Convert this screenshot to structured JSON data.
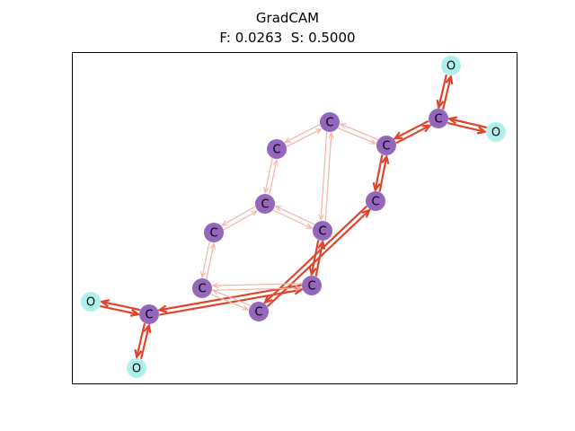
{
  "figure": {
    "title": "GradCAM",
    "fidelity_label": "F: 0.0263",
    "sparsity_label": "S: 0.5000"
  },
  "colors": {
    "carbon_node": "#9467bd",
    "oxygen_node": "#aff0ec",
    "edge_strong": "#e0442b",
    "edge_weak": "#f3b6aa",
    "frame": "#000000"
  },
  "graph": {
    "nodes": [
      {
        "id": 0,
        "label": "C",
        "element": "carbon"
      },
      {
        "id": 1,
        "label": "C",
        "element": "carbon"
      },
      {
        "id": 2,
        "label": "C",
        "element": "carbon"
      },
      {
        "id": 3,
        "label": "C",
        "element": "carbon"
      },
      {
        "id": 4,
        "label": "C",
        "element": "carbon"
      },
      {
        "id": 5,
        "label": "C",
        "element": "carbon"
      },
      {
        "id": 6,
        "label": "C",
        "element": "carbon"
      },
      {
        "id": 7,
        "label": "C",
        "element": "carbon"
      },
      {
        "id": 8,
        "label": "C",
        "element": "carbon"
      },
      {
        "id": 9,
        "label": "C",
        "element": "carbon"
      },
      {
        "id": 10,
        "label": "C",
        "element": "carbon"
      },
      {
        "id": 11,
        "label": "O",
        "element": "oxygen"
      },
      {
        "id": 12,
        "label": "O",
        "element": "oxygen"
      },
      {
        "id": 13,
        "label": "C",
        "element": "carbon"
      },
      {
        "id": 14,
        "label": "O",
        "element": "oxygen"
      },
      {
        "id": 15,
        "label": "O",
        "element": "oxygen"
      }
    ],
    "edges": [
      {
        "a": 10,
        "b": 11,
        "importance": "high"
      },
      {
        "a": 10,
        "b": 12,
        "importance": "high"
      },
      {
        "a": 9,
        "b": 10,
        "importance": "high"
      },
      {
        "a": 8,
        "b": 9,
        "importance": "high"
      },
      {
        "a": 7,
        "b": 8,
        "importance": "high"
      },
      {
        "a": 13,
        "b": 14,
        "importance": "high"
      },
      {
        "a": 13,
        "b": 15,
        "importance": "high"
      },
      {
        "a": 4,
        "b": 13,
        "importance": "high"
      },
      {
        "a": 3,
        "b": 4,
        "importance": "high"
      },
      {
        "a": 0,
        "b": 1,
        "importance": "low"
      },
      {
        "a": 1,
        "b": 2,
        "importance": "low"
      },
      {
        "a": 2,
        "b": 9,
        "importance": "low"
      },
      {
        "a": 2,
        "b": 3,
        "importance": "low"
      },
      {
        "a": 0,
        "b": 3,
        "importance": "low"
      },
      {
        "a": 0,
        "b": 5,
        "importance": "low"
      },
      {
        "a": 5,
        "b": 6,
        "importance": "low"
      },
      {
        "a": 6,
        "b": 7,
        "importance": "low"
      },
      {
        "a": 4,
        "b": 6,
        "importance": "low"
      }
    ]
  }
}
